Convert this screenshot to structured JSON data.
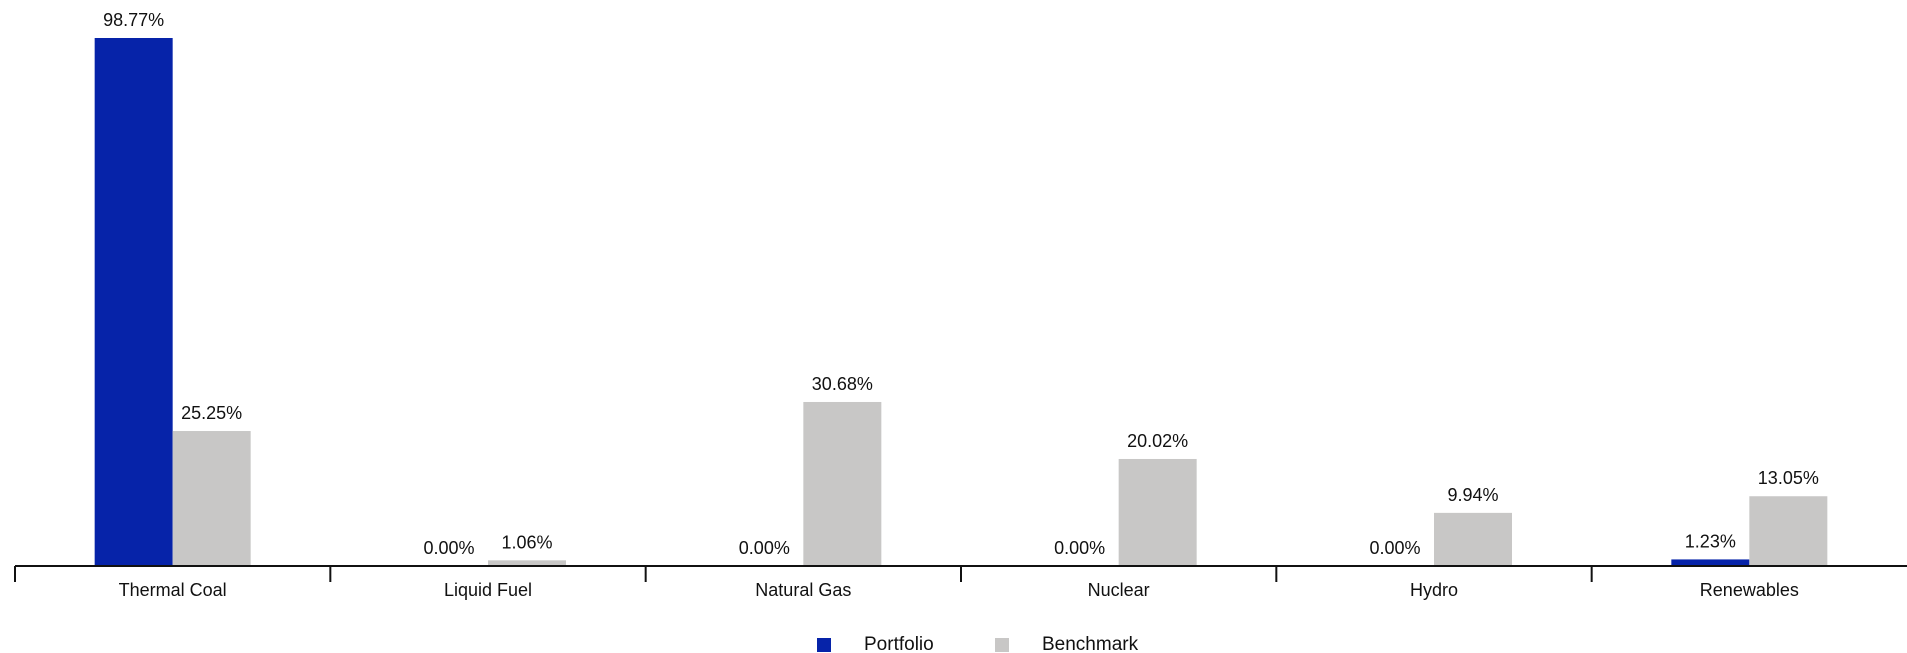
{
  "chart_data": {
    "type": "bar",
    "title": "",
    "xlabel": "",
    "ylabel": "",
    "categories": [
      "Thermal Coal",
      "Liquid Fuel",
      "Natural Gas",
      "Nuclear",
      "Hydro",
      "Renewables"
    ],
    "series": [
      {
        "name": "Portfolio",
        "color": "#0623a9",
        "values": [
          98.77,
          0.0,
          0.0,
          0.0,
          0.0,
          1.23
        ],
        "labels": [
          "98.77%",
          "0.00%",
          "0.00%",
          "0.00%",
          "0.00%",
          "1.23%"
        ]
      },
      {
        "name": "Benchmark",
        "color": "#c8c7c6",
        "values": [
          25.25,
          1.06,
          30.68,
          20.02,
          9.94,
          13.05
        ],
        "labels": [
          "25.25%",
          "1.06%",
          "30.68%",
          "20.02%",
          "9.94%",
          "13.05%"
        ]
      }
    ],
    "ylim": [
      0,
      100
    ],
    "grid": false,
    "legend": "bottom-center"
  }
}
